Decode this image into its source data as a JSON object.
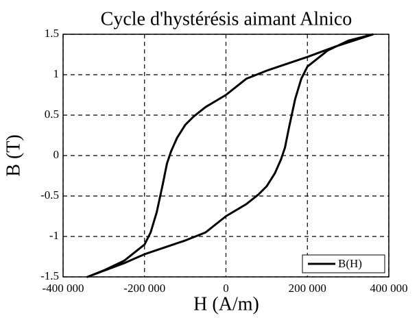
{
  "chart_data": {
    "type": "line",
    "title": "Cycle d'hystérésis aimant Alnico",
    "xlabel": "H (A/m)",
    "ylabel": "B (T)",
    "x": [
      362000,
      270000,
      200000,
      100000,
      50000,
      0,
      -50000,
      -80000,
      -100000,
      -120000,
      -135000,
      -145000,
      -155000,
      -170000,
      -185000,
      -200000,
      -250000,
      -300000,
      -340000,
      -250000,
      -200000,
      -100000,
      -50000,
      0,
      50000,
      80000,
      100000,
      120000,
      135000,
      145000,
      155000,
      170000,
      185000,
      200000,
      250000,
      300000,
      362000
    ],
    "series": [
      {
        "name": "B(H)",
        "color": "#000000",
        "values": [
          1.5,
          1.35,
          1.22,
          1.05,
          0.95,
          0.75,
          0.6,
          0.48,
          0.38,
          0.22,
          0.05,
          -0.1,
          -0.35,
          -0.7,
          -0.95,
          -1.1,
          -1.3,
          -1.42,
          -1.5,
          -1.33,
          -1.22,
          -1.05,
          -0.95,
          -0.75,
          -0.6,
          -0.48,
          -0.38,
          -0.22,
          -0.05,
          0.1,
          0.35,
          0.7,
          0.95,
          1.1,
          1.3,
          1.42,
          1.5
        ]
      }
    ],
    "xlim": [
      -400000,
      400000
    ],
    "xticks": [
      {
        "value": -400000,
        "label": "-400 000"
      },
      {
        "value": -200000,
        "label": "-200 000"
      },
      0,
      {
        "value": 200000,
        "label": "200 000"
      },
      {
        "value": 400000,
        "label": "400 000"
      }
    ],
    "ylim": [
      -1.5,
      1.5
    ],
    "yticks": [
      -1.5,
      -1,
      -0.5,
      0,
      0.5,
      1,
      1.5
    ],
    "grid": true,
    "legend": "lower right"
  }
}
